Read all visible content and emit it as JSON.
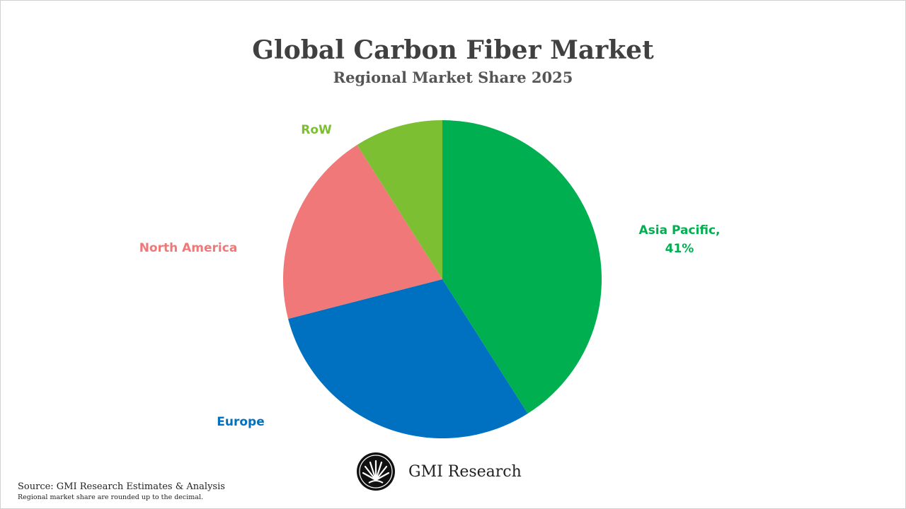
{
  "chart_data": {
    "type": "pie",
    "title": "Global Carbon Fiber Market",
    "subtitle": "Regional Market Share 2025",
    "start_angle_deg": 0,
    "direction": "clockwise",
    "slices": [
      {
        "name": "Asia Pacific",
        "value": 41,
        "color": "#00b050",
        "label": "Asia Pacific,",
        "value_label": "41%"
      },
      {
        "name": "Europe",
        "value": 30,
        "color": "#0070c0",
        "label": "Europe",
        "value_label": ""
      },
      {
        "name": "North America",
        "value": 20,
        "color": "#f07878",
        "label": "North America",
        "value_label": ""
      },
      {
        "name": "RoW",
        "value": 9,
        "color": "#7cbf33",
        "label": "RoW",
        "value_label": ""
      }
    ]
  },
  "brand": {
    "name": "GMI Research",
    "icon": "gmi-research-logo-icon"
  },
  "footer": {
    "source": "Source: GMI Research Estimates & Analysis",
    "note": "Regional market share are rounded up to the decimal."
  }
}
